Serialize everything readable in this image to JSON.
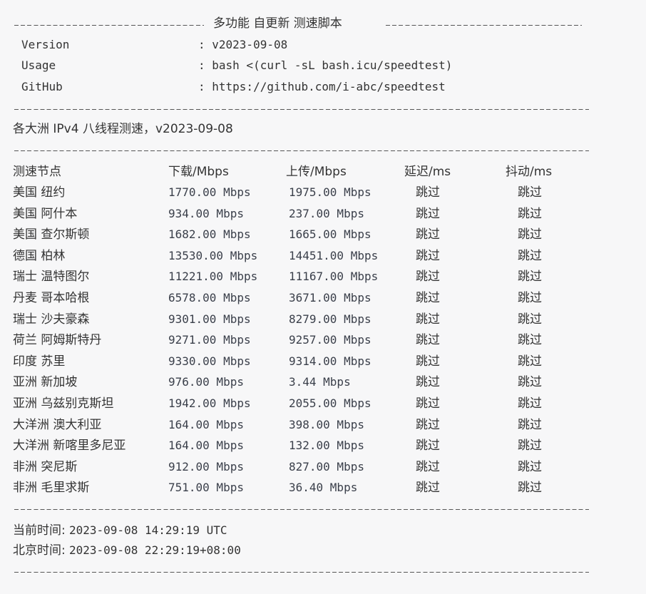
{
  "header": {
    "title": "多功能 自更新 测速脚本"
  },
  "info": [
    {
      "label": "Version",
      "value": ": v2023-09-08"
    },
    {
      "label": "Usage",
      "value": ": bash <(curl -sL bash.icu/speedtest)"
    },
    {
      "label": "GitHub",
      "value": ": https://github.com/i-abc/speedtest"
    }
  ],
  "subtitle": "各大洲 IPv4 八线程测速，v2023-09-08",
  "table": {
    "columns": [
      "测速节点",
      "下载/Mbps",
      "上传/Mbps",
      "延迟/ms",
      "抖动/ms"
    ],
    "rows": [
      [
        "美国 纽约",
        "1770.00 Mbps",
        "1975.00 Mbps",
        "跳过",
        "跳过"
      ],
      [
        "美国 阿什本",
        "934.00 Mbps",
        "237.00 Mbps",
        "跳过",
        "跳过"
      ],
      [
        "美国 查尔斯顿",
        "1682.00 Mbps",
        "1665.00 Mbps",
        "跳过",
        "跳过"
      ],
      [
        "德国 柏林",
        "13530.00 Mbps",
        "14451.00 Mbps",
        "跳过",
        "跳过"
      ],
      [
        "瑞士 温特图尔",
        "11221.00 Mbps",
        "11167.00 Mbps",
        "跳过",
        "跳过"
      ],
      [
        "丹麦 哥本哈根",
        "6578.00 Mbps",
        "3671.00 Mbps",
        "跳过",
        "跳过"
      ],
      [
        "瑞士 沙夫豪森",
        "9301.00 Mbps",
        "8279.00 Mbps",
        "跳过",
        "跳过"
      ],
      [
        "荷兰 阿姆斯特丹",
        "9271.00 Mbps",
        "9257.00 Mbps",
        "跳过",
        "跳过"
      ],
      [
        "印度 苏里",
        "9330.00 Mbps",
        "9314.00 Mbps",
        "跳过",
        "跳过"
      ],
      [
        "亚洲 新加坡",
        "976.00 Mbps",
        "3.44 Mbps",
        "跳过",
        "跳过"
      ],
      [
        "亚洲 乌兹别克斯坦",
        "1942.00 Mbps",
        "2055.00 Mbps",
        "跳过",
        "跳过"
      ],
      [
        "大洋洲 澳大利亚",
        "164.00 Mbps",
        "398.00 Mbps",
        "跳过",
        "跳过"
      ],
      [
        "大洋洲 新喀里多尼亚",
        "164.00 Mbps",
        "132.00 Mbps",
        "跳过",
        "跳过"
      ],
      [
        "非洲 突尼斯",
        "912.00 Mbps",
        "827.00 Mbps",
        "跳过",
        "跳过"
      ],
      [
        "非洲 毛里求斯",
        "751.00 Mbps",
        "36.40 Mbps",
        "跳过",
        "跳过"
      ]
    ]
  },
  "footer": {
    "current_time_label": "当前时间:",
    "current_time": "2023-09-08 14:29:19 UTC",
    "beijing_time_label": "北京时间:",
    "beijing_time": "2023-09-08 22:29:19+08:00"
  }
}
